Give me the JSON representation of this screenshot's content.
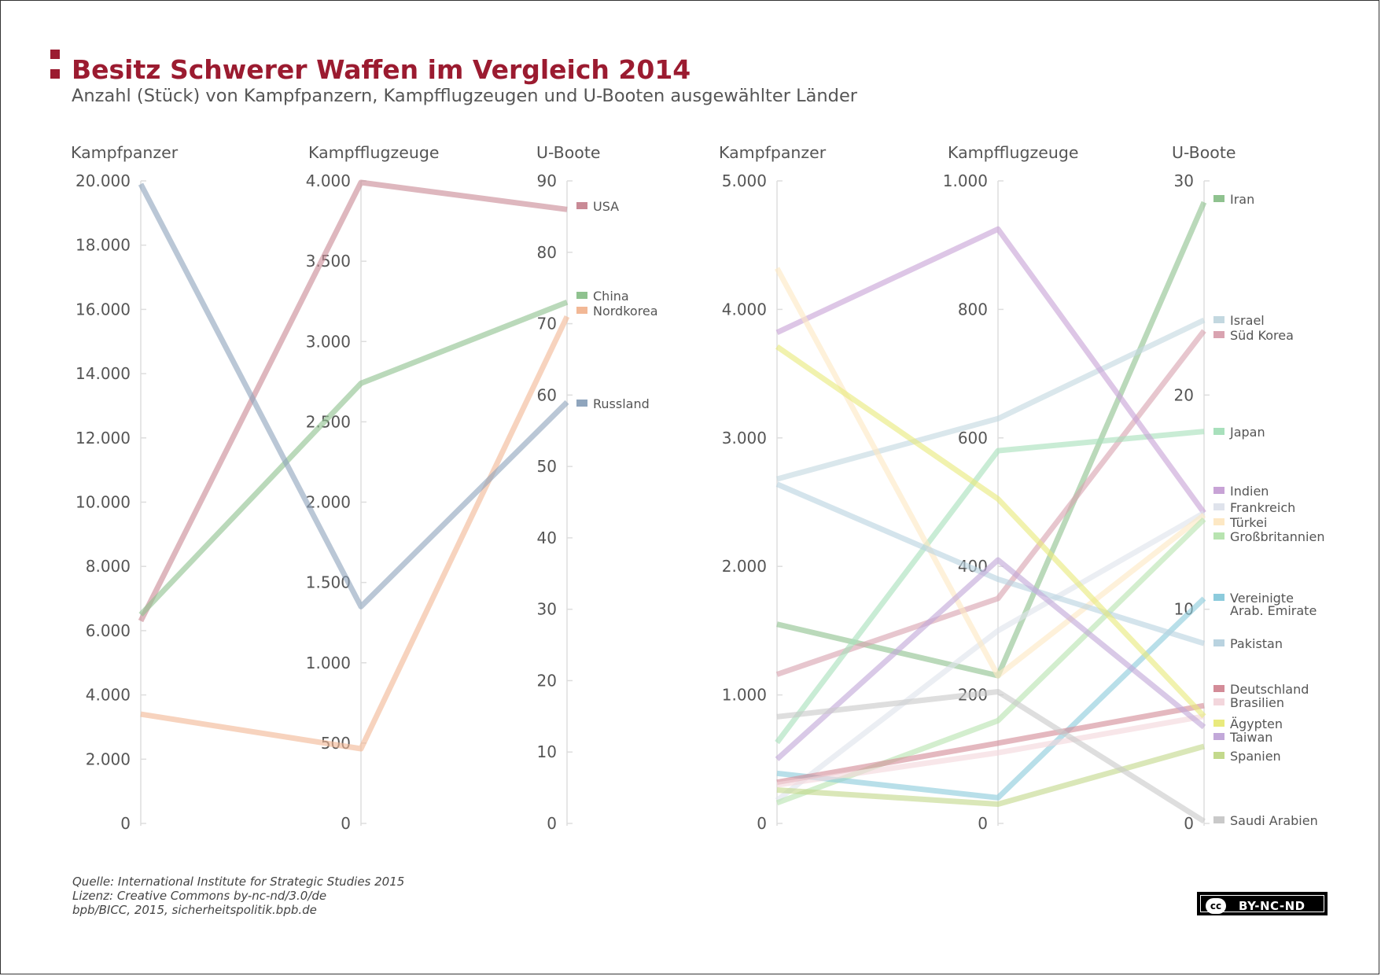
{
  "header": {
    "title": "Besitz Schwerer Waffen im Vergleich 2014",
    "subtitle": "Anzahl (Stück) von Kampfpanzern, Kampfflugzeugen und U-Booten ausgewählter Länder"
  },
  "footer": {
    "source": "Quelle: International Institute for Strategic Studies 2015",
    "license": "Lizenz: Creative Commons by-nc-nd/3.0/de",
    "credit": "bpb/BICC, 2015, sicherheitspolitik.bpb.de"
  },
  "badge": {
    "logo": "cc",
    "label": "BY-NC-ND"
  },
  "colors": {
    "title": "#9b1b30",
    "axis": "#dddddd",
    "text": "#555555"
  },
  "chart_data": [
    {
      "type": "parallel-coordinates",
      "name": "left-panel",
      "axes": [
        {
          "title": "Kampfpanzer",
          "range": [
            0,
            20000
          ],
          "ticks": [
            {
              "value": 0,
              "label": "0"
            },
            {
              "value": 2000,
              "label": "2.000"
            },
            {
              "value": 4000,
              "label": "4.000"
            },
            {
              "value": 6000,
              "label": "6.000"
            },
            {
              "value": 8000,
              "label": "8.000"
            },
            {
              "value": 10000,
              "label": "10.000"
            },
            {
              "value": 12000,
              "label": "12.000"
            },
            {
              "value": 14000,
              "label": "14.000"
            },
            {
              "value": 16000,
              "label": "16.000"
            },
            {
              "value": 18000,
              "label": "18.000"
            },
            {
              "value": 20000,
              "label": "20.000"
            }
          ]
        },
        {
          "title": "Kampfflugzeuge",
          "range": [
            0,
            4000
          ],
          "ticks": [
            {
              "value": 0,
              "label": "0"
            },
            {
              "value": 500,
              "label": "500"
            },
            {
              "value": 1000,
              "label": "1.000"
            },
            {
              "value": 1500,
              "label": "1.500"
            },
            {
              "value": 2000,
              "label": "2.000"
            },
            {
              "value": 2500,
              "label": "2.500"
            },
            {
              "value": 3000,
              "label": "3.000"
            },
            {
              "value": 3500,
              "label": "3.500"
            },
            {
              "value": 4000,
              "label": "4.000"
            }
          ]
        },
        {
          "title": "U-Boote",
          "range": [
            0,
            90
          ],
          "ticks": [
            {
              "value": 0,
              "label": "0"
            },
            {
              "value": 10,
              "label": "10"
            },
            {
              "value": 20,
              "label": "20"
            },
            {
              "value": 30,
              "label": "30"
            },
            {
              "value": 40,
              "label": "40"
            },
            {
              "value": 50,
              "label": "50"
            },
            {
              "value": 60,
              "label": "60"
            },
            {
              "value": 70,
              "label": "70"
            },
            {
              "value": 80,
              "label": "80"
            },
            {
              "value": 90,
              "label": "90"
            }
          ]
        }
      ],
      "series": [
        {
          "name": "USA",
          "values": [
            6300,
            3990,
            86
          ],
          "color": "#c98a96"
        },
        {
          "name": "China",
          "values": [
            6500,
            2740,
            73
          ],
          "color": "#8fc28f"
        },
        {
          "name": "Nordkorea",
          "values": [
            3400,
            465,
            71
          ],
          "color": "#f2b896"
        },
        {
          "name": "Russland",
          "values": [
            19900,
            1350,
            59
          ],
          "color": "#8fa5bd"
        }
      ]
    },
    {
      "type": "parallel-coordinates",
      "name": "right-panel",
      "axes": [
        {
          "title": "Kampfpanzer",
          "range": [
            0,
            5000
          ],
          "ticks": [
            {
              "value": 0,
              "label": "0"
            },
            {
              "value": 1000,
              "label": "1.000"
            },
            {
              "value": 2000,
              "label": "2.000"
            },
            {
              "value": 3000,
              "label": "3.000"
            },
            {
              "value": 4000,
              "label": "4.000"
            },
            {
              "value": 5000,
              "label": "5.000"
            }
          ]
        },
        {
          "title": "Kampfflugzeuge",
          "range": [
            0,
            1000
          ],
          "ticks": [
            {
              "value": 0,
              "label": "0"
            },
            {
              "value": 200,
              "label": "200"
            },
            {
              "value": 400,
              "label": "400"
            },
            {
              "value": 600,
              "label": "600"
            },
            {
              "value": 800,
              "label": "800"
            },
            {
              "value": 1000,
              "label": "1.000"
            }
          ]
        },
        {
          "title": "U-Boote",
          "range": [
            0,
            30
          ],
          "ticks": [
            {
              "value": 0,
              "label": "0"
            },
            {
              "value": 10,
              "label": "10"
            },
            {
              "value": 20,
              "label": "20"
            },
            {
              "value": 30,
              "label": "30"
            }
          ]
        }
      ],
      "series": [
        {
          "name": "Iran",
          "values": [
            1550,
            230,
            29
          ],
          "color": "#8fc28f"
        },
        {
          "name": "Israel",
          "values": [
            2680,
            630,
            23.5
          ],
          "color": "#c3d8e0"
        },
        {
          "name": "Süd Korea",
          "values": [
            1160,
            350,
            23
          ],
          "color": "#d9a3b0"
        },
        {
          "name": "Japan",
          "values": [
            630,
            580,
            18.3
          ],
          "color": "#a8e0bc"
        },
        {
          "name": "Indien",
          "values": [
            3820,
            925,
            14.5
          ],
          "color": "#c8a3d6"
        },
        {
          "name": "Frankreich",
          "values": [
            180,
            300,
            14.5
          ],
          "color": "#dfe3ec"
        },
        {
          "name": "Türkei",
          "values": [
            4320,
            230,
            14.4
          ],
          "color": "#fde8c4"
        },
        {
          "name": "Großbritannien",
          "values": [
            160,
            160,
            14.2
          ],
          "color": "#b8e4b0"
        },
        {
          "name": "Vereinigte Arab. Emirate",
          "values": [
            390,
            40,
            10.5
          ],
          "color": "#8ccbdc"
        },
        {
          "name": "Pakistan",
          "values": [
            2640,
            380,
            8.4
          ],
          "color": "#b9d3e0"
        },
        {
          "name": "Deutschland",
          "values": [
            320,
            125,
            5.5
          ],
          "color": "#d38c98"
        },
        {
          "name": "Brasilien",
          "values": [
            300,
            110,
            5
          ],
          "color": "#f3d6dc"
        },
        {
          "name": "Ägypten",
          "values": [
            3710,
            505,
            5
          ],
          "color": "#e9ea7d"
        },
        {
          "name": "Taiwan",
          "values": [
            500,
            410,
            4.5
          ],
          "color": "#c2a8d9"
        },
        {
          "name": "Spanien",
          "values": [
            260,
            30,
            3.6
          ],
          "color": "#c3d98c"
        },
        {
          "name": "Saudi Arabien",
          "values": [
            830,
            205,
            0.1
          ],
          "color": "#c9c9c9"
        }
      ]
    }
  ]
}
